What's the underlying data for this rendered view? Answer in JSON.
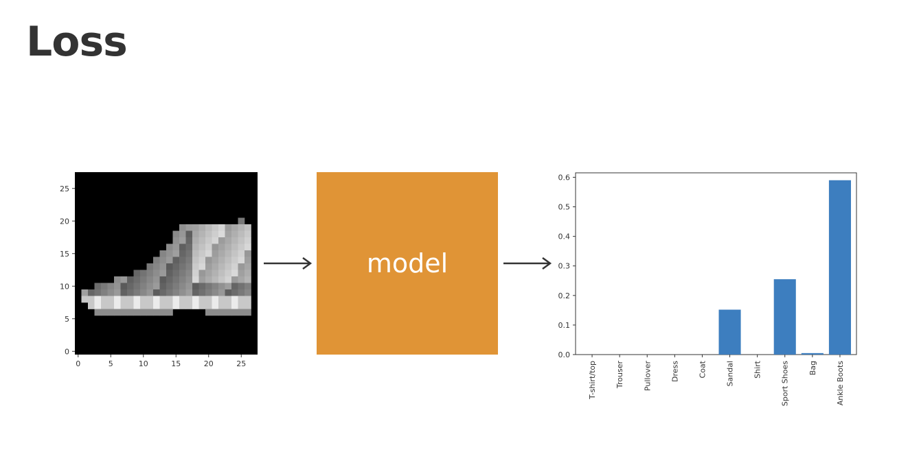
{
  "slide": {
    "title": "Loss"
  },
  "input_image": {
    "x_ticks": [
      "0",
      "5",
      "10",
      "15",
      "20",
      "25"
    ],
    "y_ticks": [
      "0",
      "5",
      "10",
      "15",
      "20",
      "25"
    ],
    "xlim": [
      -0.5,
      27.5
    ],
    "ylim": [
      27.5,
      -0.5
    ]
  },
  "model_box": {
    "label": "model",
    "color": "#E09436"
  },
  "arrow_color": "#333333",
  "chart_data": {
    "type": "bar",
    "categories": [
      "T-shirt/top",
      "Trouser",
      "Pullover",
      "Dress",
      "Coat",
      "Sandal",
      "Shirt",
      "Sport Shoes",
      "Bag",
      "Ankle Boots"
    ],
    "values": [
      0.0,
      0.0,
      0.0,
      0.0,
      0.0,
      0.152,
      0.0,
      0.255,
      0.005,
      0.59
    ],
    "y_ticks": [
      "0.0",
      "0.1",
      "0.2",
      "0.3",
      "0.4",
      "0.5",
      "0.6"
    ],
    "ylim": [
      0,
      0.615
    ],
    "bar_color": "#3D7EBF",
    "grid": false
  }
}
